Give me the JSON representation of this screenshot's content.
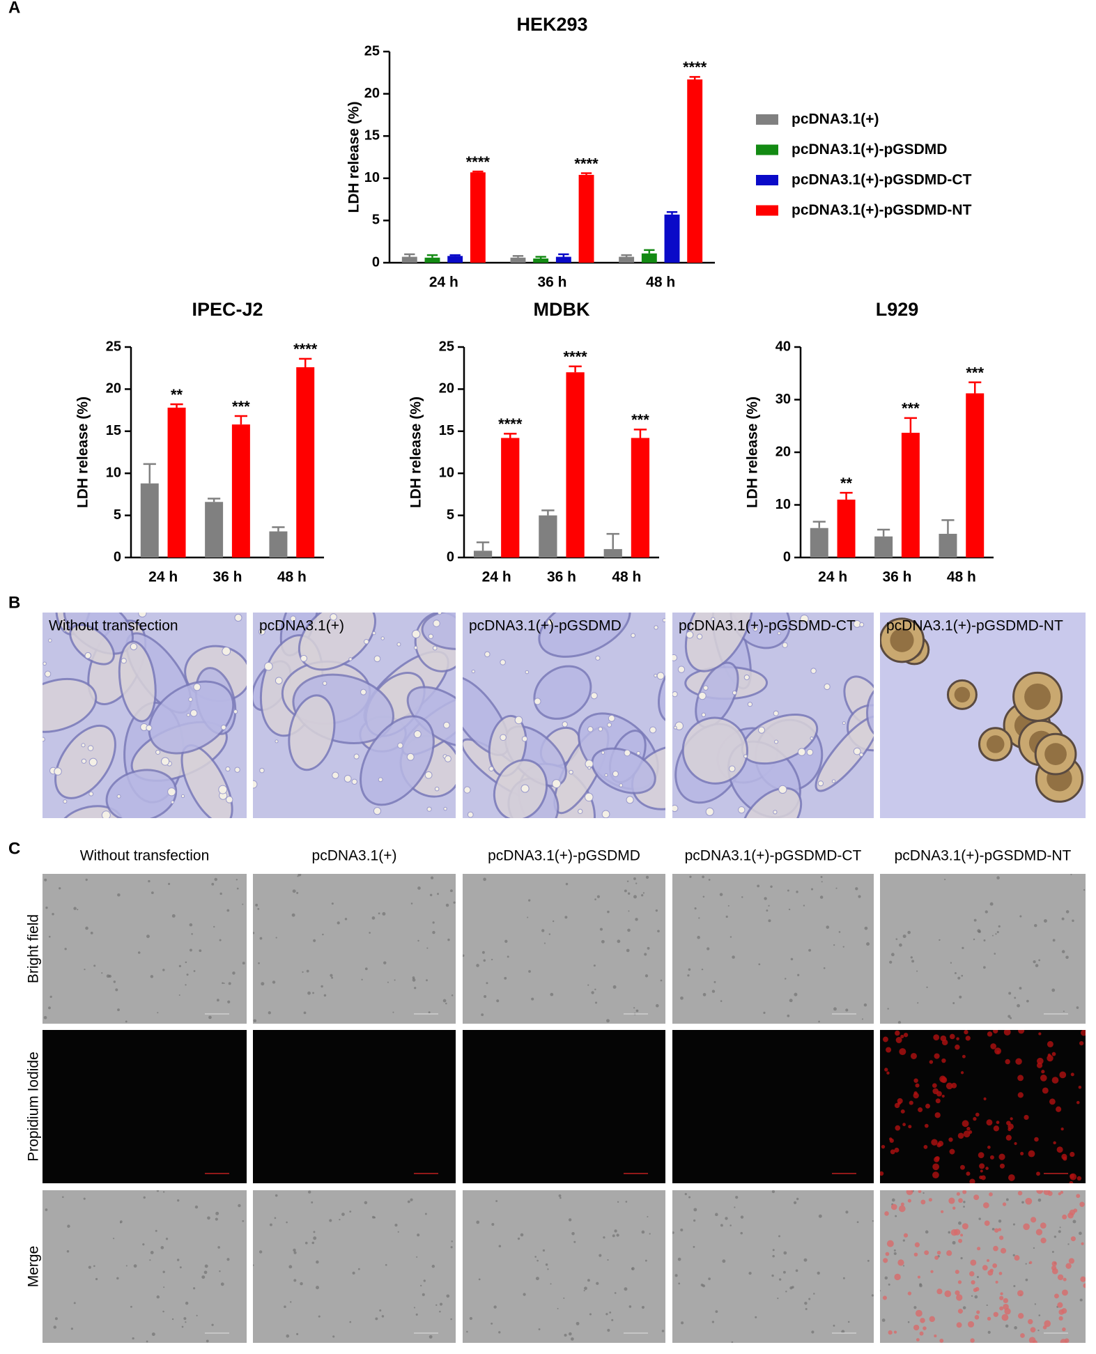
{
  "panel_labels": [
    "A",
    "B",
    "C"
  ],
  "chart_data": [
    {
      "type": "bar",
      "title": "HEK293",
      "y_label": "LDH release (%)",
      "categories": [
        "24 h",
        "36 h",
        "48 h"
      ],
      "ylim": [
        0,
        25
      ],
      "yticks": [
        0,
        5,
        10,
        15,
        20,
        25
      ],
      "series": [
        {
          "name": "pcDNA3.1(+)",
          "color": "#808080",
          "values": [
            0.7,
            0.6,
            0.7
          ],
          "errors": [
            0.3,
            0.2,
            0.2
          ],
          "significance": [
            null,
            null,
            null
          ]
        },
        {
          "name": "pcDNA3.1(+)-pGSDMD",
          "color": "#138a13",
          "values": [
            0.6,
            0.5,
            1.1
          ],
          "errors": [
            0.3,
            0.2,
            0.4
          ],
          "significance": [
            null,
            null,
            null
          ]
        },
        {
          "name": "pcDNA3.1(+)-pGSDMD-CT",
          "color": "#0a0ac8",
          "values": [
            0.8,
            0.7,
            5.7
          ],
          "errors": [
            0.1,
            0.3,
            0.3
          ],
          "significance": [
            null,
            null,
            null
          ]
        },
        {
          "name": "pcDNA3.1(+)-pGSDMD-NT",
          "color": "#ff0000",
          "values": [
            10.7,
            10.4,
            21.7
          ],
          "errors": [
            0.1,
            0.2,
            0.3
          ],
          "significance": [
            "****",
            "****",
            "****"
          ]
        }
      ]
    },
    {
      "type": "bar",
      "title": "IPEC-J2",
      "y_label": "LDH release (%)",
      "categories": [
        "24 h",
        "36 h",
        "48 h"
      ],
      "ylim": [
        0,
        25
      ],
      "yticks": [
        0,
        5,
        10,
        15,
        20,
        25
      ],
      "series": [
        {
          "color": "#808080",
          "values": [
            8.8,
            6.6,
            3.1
          ],
          "errors": [
            2.3,
            0.4,
            0.5
          ],
          "significance": [
            null,
            null,
            null
          ]
        },
        {
          "color": "#ff0000",
          "values": [
            17.8,
            15.8,
            22.6
          ],
          "errors": [
            0.4,
            1.0,
            1.0
          ],
          "significance": [
            "**",
            "***",
            "****"
          ]
        }
      ]
    },
    {
      "type": "bar",
      "title": "MDBK",
      "y_label": "LDH release (%)",
      "categories": [
        "24 h",
        "36 h",
        "48 h"
      ],
      "ylim": [
        0,
        25
      ],
      "yticks": [
        0,
        5,
        10,
        15,
        20,
        25
      ],
      "series": [
        {
          "color": "#808080",
          "values": [
            0.8,
            5.0,
            1.0
          ],
          "errors": [
            1.0,
            0.6,
            1.8
          ],
          "significance": [
            null,
            null,
            null
          ]
        },
        {
          "color": "#ff0000",
          "values": [
            14.2,
            22.0,
            14.2
          ],
          "errors": [
            0.5,
            0.7,
            1.0
          ],
          "significance": [
            "****",
            "****",
            "***"
          ]
        }
      ]
    },
    {
      "type": "bar",
      "title": "L929",
      "y_label": "LDH release (%)",
      "categories": [
        "24 h",
        "36 h",
        "48 h"
      ],
      "ylim": [
        0,
        40
      ],
      "yticks": [
        0,
        10,
        20,
        30,
        40
      ],
      "series": [
        {
          "color": "#808080",
          "values": [
            5.6,
            4.0,
            4.5
          ],
          "errors": [
            1.2,
            1.3,
            2.6
          ],
          "significance": [
            null,
            null,
            null
          ]
        },
        {
          "color": "#ff0000",
          "values": [
            11.0,
            23.7,
            31.2
          ],
          "errors": [
            1.3,
            2.8,
            2.1
          ],
          "significance": [
            "**",
            "***",
            "***"
          ]
        }
      ]
    }
  ],
  "panel_b": {
    "labels": [
      "Without transfection",
      "pcDNA3.1(+)",
      "pcDNA3.1(+)-pGSDMD",
      "pcDNA3.1(+)-pGSDMD-CT",
      "pcDNA3.1(+)-pGSDMD-NT"
    ]
  },
  "panel_c": {
    "columns": [
      "Without transfection",
      "pcDNA3.1(+)",
      "pcDNA3.1(+)-pGSDMD",
      "pcDNA3.1(+)-pGSDMD-CT",
      "pcDNA3.1(+)-pGSDMD-NT"
    ],
    "rows": [
      "Bright field",
      "Propidium Iodide",
      "Merge"
    ]
  }
}
